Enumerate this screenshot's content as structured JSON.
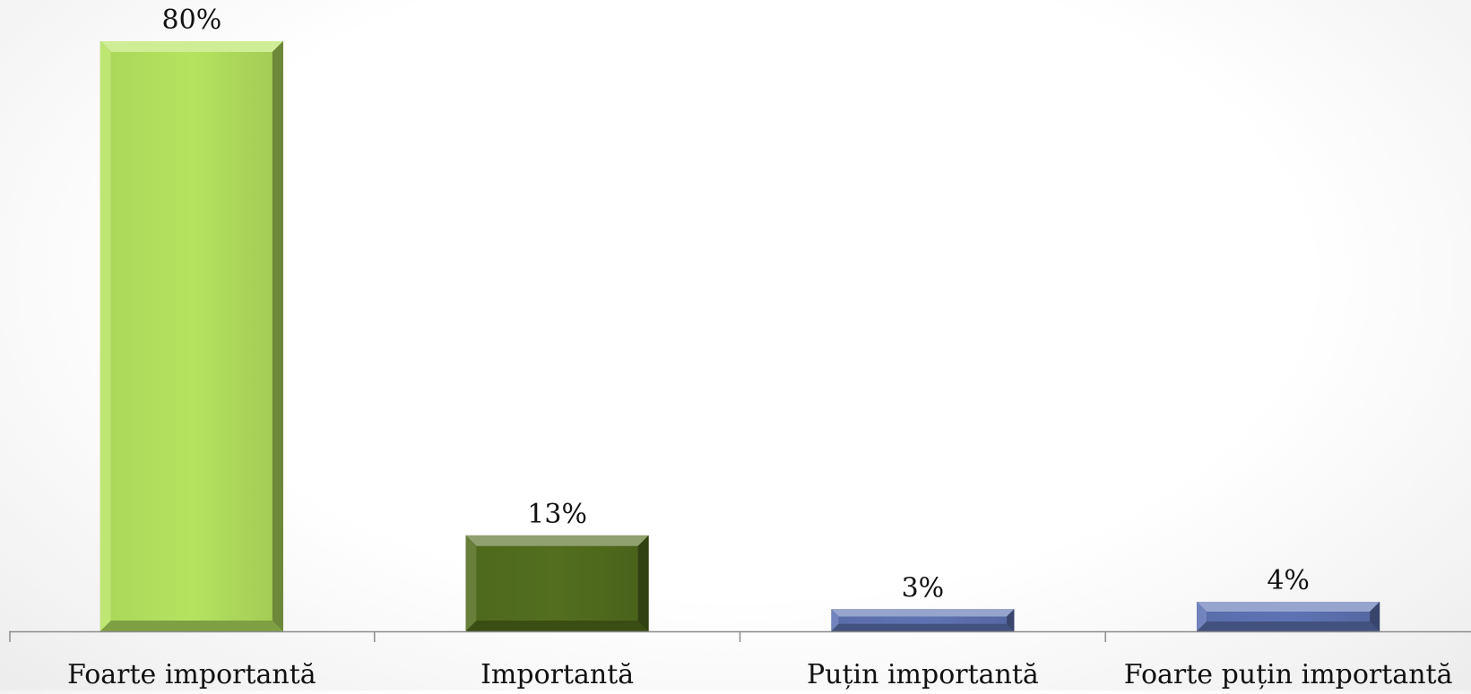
{
  "chart_data": {
    "type": "bar",
    "title": "",
    "xlabel": "",
    "ylabel": "",
    "categories": [
      "Foarte importantă",
      "Importantă",
      "Puțin importantă",
      "Foarte puțin importantă"
    ],
    "values": [
      80,
      13,
      3,
      4
    ],
    "data_labels": [
      "80%",
      "13%",
      "3%",
      "4%"
    ],
    "unit": "%",
    "ylim": [
      0,
      80
    ],
    "grid": false,
    "legend": "none",
    "bar_colors": [
      "#b5e35f",
      "#526e1e",
      "#5f73b4",
      "#5f73b4"
    ]
  }
}
